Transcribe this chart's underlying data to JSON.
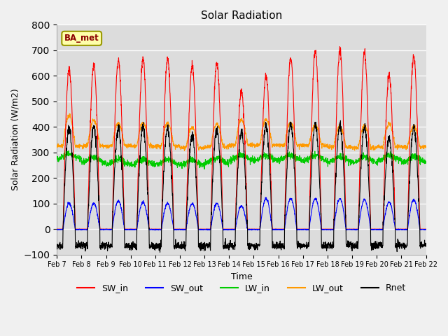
{
  "title": "Solar Radiation",
  "xlabel": "Time",
  "ylabel": "Solar Radiation (W/m2)",
  "ylim": [
    -100,
    800
  ],
  "plot_bg": "#dcdcdc",
  "outer_bg": "#f0f0f0",
  "legend_labels": [
    "SW_in",
    "SW_out",
    "LW_in",
    "LW_out",
    "Rnet"
  ],
  "legend_colors": [
    "#ff0000",
    "#0000ff",
    "#00cc00",
    "#ff9900",
    "#000000"
  ],
  "annotation_text": "BA_met",
  "n_days": 15,
  "points_per_day": 144,
  "sw_in_peaks": [
    625,
    640,
    660,
    665,
    665,
    640,
    650,
    540,
    600,
    670,
    700,
    700,
    690,
    600,
    675
  ],
  "sw_out_peaks": [
    100,
    100,
    110,
    105,
    100,
    100,
    100,
    90,
    120,
    120,
    120,
    120,
    115,
    105,
    115
  ],
  "lw_in_base": [
    285,
    270,
    262,
    262,
    262,
    260,
    268,
    280,
    278,
    280,
    278,
    272,
    272,
    278,
    272
  ],
  "lw_out_base": [
    325,
    325,
    325,
    325,
    325,
    318,
    322,
    328,
    328,
    328,
    328,
    322,
    318,
    322,
    322
  ],
  "lw_out_peak_add": [
    120,
    100,
    90,
    90,
    90,
    80,
    90,
    100,
    100,
    90,
    80,
    80,
    85,
    90,
    80
  ],
  "rnet_night": -65,
  "rnet_peaks": [
    395,
    400,
    395,
    400,
    395,
    365,
    385,
    375,
    405,
    410,
    410,
    405,
    395,
    355,
    400
  ],
  "tick_days": [
    "Feb 7",
    "Feb 8",
    "Feb 9",
    "Feb 10",
    "Feb 11",
    "Feb 12",
    "Feb 13",
    "Feb 14",
    "Feb 15",
    "Feb 16",
    "Feb 17",
    "Feb 18",
    "Feb 19",
    "Feb 20",
    "Feb 21",
    "Feb 22"
  ]
}
